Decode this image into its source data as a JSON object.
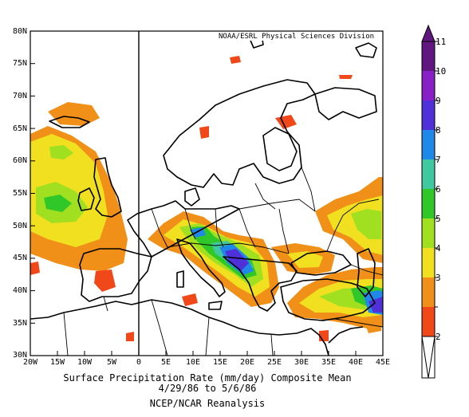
{
  "map": {
    "credit": "NOAA/ESRL Physical Sciences Division",
    "lat_labels": [
      "80N",
      "75N",
      "70N",
      "65N",
      "60N",
      "55N",
      "50N",
      "45N",
      "40N",
      "35N",
      "30N"
    ],
    "lon_labels": [
      "20W",
      "15W",
      "10W",
      "5W",
      "0",
      "5E",
      "10E",
      "15E",
      "20E",
      "25E",
      "30E",
      "35E",
      "40E",
      "45E"
    ],
    "lon_range": [
      -20,
      45
    ],
    "lat_range": [
      30,
      80
    ],
    "colors": {
      "c2": "#f04818",
      "c3": "#f09018",
      "c4": "#f0e020",
      "c5": "#a0e020",
      "c6": "#30c828",
      "c7": "#40c8a0",
      "c8": "#2088e8",
      "c9": "#5030d8",
      "c10": "#8820c8",
      "c11": "#601880",
      "land": "#000000"
    }
  },
  "caption": {
    "line1": "Surface Precipitation Rate (mm/day) Composite Mean",
    "line2": "4/29/86 to 5/6/86",
    "line3": "NCEP/NCAR Reanalysis"
  },
  "colorbar": {
    "ticks": [
      "11",
      "10",
      "9",
      "8",
      "7",
      "6",
      "5",
      "4",
      "3",
      "2"
    ],
    "colors": [
      "#601880",
      "#8820c8",
      "#5030d8",
      "#2088e8",
      "#40c8a0",
      "#30c828",
      "#a0e020",
      "#f0e020",
      "#f09018",
      "#f04818"
    ]
  }
}
